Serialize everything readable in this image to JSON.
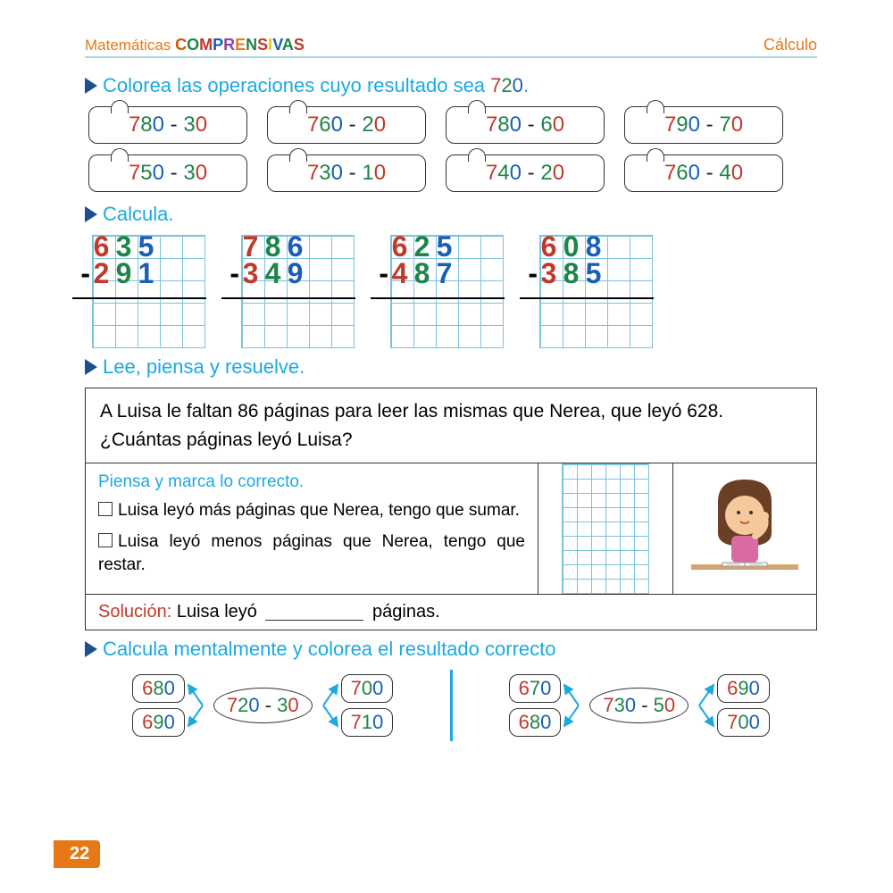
{
  "header": {
    "left_prefix": "Matemáticas",
    "logo_letters": [
      {
        "ch": "C",
        "color": "#d35400"
      },
      {
        "ch": "O",
        "color": "#1e8449"
      },
      {
        "ch": "M",
        "color": "#c0392b"
      },
      {
        "ch": "P",
        "color": "#1a5fb4"
      },
      {
        "ch": "R",
        "color": "#8e44ad"
      },
      {
        "ch": "E",
        "color": "#e67e22"
      },
      {
        "ch": "N",
        "color": "#1e8449"
      },
      {
        "ch": "S",
        "color": "#c0392b"
      },
      {
        "ch": "I",
        "color": "#f1c40f"
      },
      {
        "ch": "V",
        "color": "#1a5fb4"
      },
      {
        "ch": "A",
        "color": "#1e8449"
      },
      {
        "ch": "S",
        "color": "#c0392b"
      }
    ],
    "right": "Cálculo"
  },
  "section1": {
    "title_prefix": "Colorea las operaciones cuyo resultado sea ",
    "target": [
      [
        "7",
        "d-red"
      ],
      [
        "2",
        "d-green"
      ],
      [
        "0",
        "d-blue"
      ]
    ],
    "period": ".",
    "puzzles": [
      [
        [
          "7",
          "d-red"
        ],
        [
          "8",
          "d-green"
        ],
        [
          "0",
          "d-blue"
        ],
        [
          " - ",
          "d-black"
        ],
        [
          "3",
          "d-green"
        ],
        [
          "0",
          "d-red"
        ]
      ],
      [
        [
          "7",
          "d-red"
        ],
        [
          "6",
          "d-green"
        ],
        [
          "0",
          "d-blue"
        ],
        [
          " - ",
          "d-black"
        ],
        [
          "2",
          "d-green"
        ],
        [
          "0",
          "d-red"
        ]
      ],
      [
        [
          "7",
          "d-red"
        ],
        [
          "8",
          "d-green"
        ],
        [
          "0",
          "d-blue"
        ],
        [
          " - ",
          "d-black"
        ],
        [
          "6",
          "d-green"
        ],
        [
          "0",
          "d-red"
        ]
      ],
      [
        [
          "7",
          "d-red"
        ],
        [
          "9",
          "d-green"
        ],
        [
          "0",
          "d-blue"
        ],
        [
          " - ",
          "d-black"
        ],
        [
          "7",
          "d-green"
        ],
        [
          "0",
          "d-red"
        ]
      ],
      [
        [
          "7",
          "d-red"
        ],
        [
          "5",
          "d-green"
        ],
        [
          "0",
          "d-blue"
        ],
        [
          " - ",
          "d-black"
        ],
        [
          "3",
          "d-green"
        ],
        [
          "0",
          "d-red"
        ]
      ],
      [
        [
          "7",
          "d-red"
        ],
        [
          "3",
          "d-green"
        ],
        [
          "0",
          "d-blue"
        ],
        [
          " - ",
          "d-black"
        ],
        [
          "1",
          "d-green"
        ],
        [
          "0",
          "d-red"
        ]
      ],
      [
        [
          "7",
          "d-red"
        ],
        [
          "4",
          "d-green"
        ],
        [
          "0",
          "d-blue"
        ],
        [
          " - ",
          "d-black"
        ],
        [
          "2",
          "d-green"
        ],
        [
          "0",
          "d-red"
        ]
      ],
      [
        [
          "7",
          "d-red"
        ],
        [
          "6",
          "d-green"
        ],
        [
          "0",
          "d-blue"
        ],
        [
          " - ",
          "d-black"
        ],
        [
          "4",
          "d-green"
        ],
        [
          "0",
          "d-red"
        ]
      ]
    ]
  },
  "section2": {
    "title": "Calcula.",
    "problems": [
      {
        "top": [
          [
            "6",
            "d-red"
          ],
          [
            "3",
            "d-green"
          ],
          [
            "5",
            "d-blue"
          ]
        ],
        "bot": [
          [
            "2",
            "d-red"
          ],
          [
            "9",
            "d-green"
          ],
          [
            "1",
            "d-blue"
          ]
        ]
      },
      {
        "top": [
          [
            "7",
            "d-red"
          ],
          [
            "8",
            "d-green"
          ],
          [
            "6",
            "d-blue"
          ]
        ],
        "bot": [
          [
            "3",
            "d-red"
          ],
          [
            "4",
            "d-green"
          ],
          [
            "9",
            "d-blue"
          ]
        ]
      },
      {
        "top": [
          [
            "6",
            "d-red"
          ],
          [
            "2",
            "d-green"
          ],
          [
            "5",
            "d-blue"
          ]
        ],
        "bot": [
          [
            "4",
            "d-red"
          ],
          [
            "8",
            "d-green"
          ],
          [
            "7",
            "d-blue"
          ]
        ]
      },
      {
        "top": [
          [
            "6",
            "d-red"
          ],
          [
            "0",
            "d-green"
          ],
          [
            "8",
            "d-blue"
          ]
        ],
        "bot": [
          [
            "3",
            "d-red"
          ],
          [
            "8",
            "d-green"
          ],
          [
            "5",
            "d-blue"
          ]
        ]
      }
    ]
  },
  "section3": {
    "title": "Lee, piensa y resuelve.",
    "problem": "A Luisa le faltan 86 páginas para leer las mismas que Nerea, que leyó 628. ¿Cuántas páginas leyó Luisa?",
    "think_prompt": "Piensa y marca lo correcto.",
    "opt1": "Luisa leyó más páginas que Nerea, tengo que sumar.",
    "opt2": "Luisa leyó menos páginas que Nerea, tengo que restar.",
    "sol_label": "Solución:",
    "sol_text1": " Luisa leyó ",
    "sol_text2": " páginas."
  },
  "section4": {
    "title": "Calcula mentalmente y colorea el resultado correcto",
    "groups": [
      {
        "left_opts": [
          [
            [
              "6",
              "d-red"
            ],
            [
              "8",
              "d-green"
            ],
            [
              "0",
              "d-blue"
            ]
          ],
          [
            [
              "6",
              "d-red"
            ],
            [
              "9",
              "d-green"
            ],
            [
              "0",
              "d-blue"
            ]
          ]
        ],
        "expr": [
          [
            "7",
            "d-red"
          ],
          [
            "2",
            "d-green"
          ],
          [
            "0",
            "d-blue"
          ],
          [
            " - ",
            "d-black"
          ],
          [
            "3",
            "d-green"
          ],
          [
            "0",
            "d-red"
          ]
        ],
        "right_opts": [
          [
            [
              "7",
              "d-red"
            ],
            [
              "0",
              "d-green"
            ],
            [
              "0",
              "d-blue"
            ]
          ],
          [
            [
              "7",
              "d-red"
            ],
            [
              "1",
              "d-green"
            ],
            [
              "0",
              "d-blue"
            ]
          ]
        ]
      },
      {
        "left_opts": [
          [
            [
              "6",
              "d-red"
            ],
            [
              "7",
              "d-green"
            ],
            [
              "0",
              "d-blue"
            ]
          ],
          [
            [
              "6",
              "d-red"
            ],
            [
              "8",
              "d-green"
            ],
            [
              "0",
              "d-blue"
            ]
          ]
        ],
        "expr": [
          [
            "7",
            "d-red"
          ],
          [
            "3",
            "d-green"
          ],
          [
            "0",
            "d-blue"
          ],
          [
            " - ",
            "d-black"
          ],
          [
            "5",
            "d-green"
          ],
          [
            "0",
            "d-red"
          ]
        ],
        "right_opts": [
          [
            [
              "6",
              "d-red"
            ],
            [
              "9",
              "d-green"
            ],
            [
              "0",
              "d-blue"
            ]
          ],
          [
            [
              "7",
              "d-red"
            ],
            [
              "0",
              "d-green"
            ],
            [
              "0",
              "d-blue"
            ]
          ]
        ]
      }
    ]
  },
  "page_number": "22"
}
